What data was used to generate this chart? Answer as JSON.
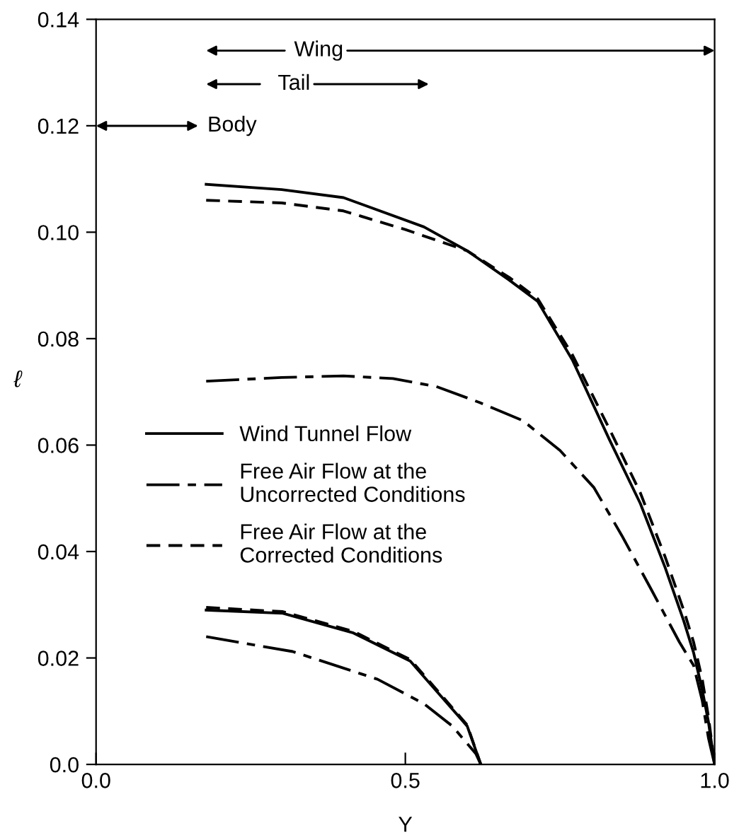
{
  "chart_data": {
    "type": "line",
    "xlabel": "Y",
    "ylabel": "ℓ",
    "xlim": [
      0,
      1.0
    ],
    "ylim": [
      0,
      0.14
    ],
    "xticks": [
      {
        "value": 0,
        "label": "0.0"
      },
      0.5,
      {
        "value": 1.0,
        "label": "1.0"
      }
    ],
    "yticks": [
      {
        "value": 0,
        "label": "0.0"
      },
      0.02,
      0.04,
      0.06,
      0.08,
      {
        "value": 0.1,
        "label": "0.10"
      },
      0.12,
      0.14
    ],
    "grid": false,
    "legend": "left",
    "marker": "none",
    "series": [
      {
        "name": "Wind Tunnel Flow",
        "color": "#000000",
        "line_style": "solid",
        "x": [
          0.178,
          0.3,
          0.4,
          0.53,
          0.6,
          0.668,
          0.714,
          0.77,
          0.83,
          0.88,
          0.92,
          0.95,
          0.966,
          0.98,
          0.99,
          1.0
        ],
        "values": [
          0.109,
          0.108,
          0.1065,
          0.101,
          0.0965,
          0.091,
          0.087,
          0.076,
          0.061,
          0.049,
          0.037,
          0.027,
          0.021,
          0.014,
          0.008,
          0.0
        ]
      },
      {
        "name": "Free Air Flow at the\nUncorrected Conditions",
        "color": "#000000",
        "line_style": "dashdot",
        "x": [
          0.178,
          0.3,
          0.4,
          0.48,
          0.55,
          0.62,
          0.69,
          0.75,
          0.805,
          0.85,
          0.897,
          0.92,
          0.943,
          0.966,
          0.98,
          0.99,
          1.0
        ],
        "values": [
          0.072,
          0.0727,
          0.073,
          0.0725,
          0.071,
          0.068,
          0.0646,
          0.059,
          0.052,
          0.043,
          0.033,
          0.028,
          0.023,
          0.0186,
          0.012,
          0.005,
          0.0
        ]
      },
      {
        "name": "Free Air Flow at the\nCorrected Conditions",
        "color": "#000000",
        "line_style": "dashed",
        "x": [
          0.178,
          0.3,
          0.4,
          0.5,
          0.6,
          0.668,
          0.714,
          0.77,
          0.83,
          0.88,
          0.92,
          0.95,
          0.966,
          0.98,
          0.99,
          1.0
        ],
        "values": [
          0.106,
          0.1055,
          0.104,
          0.1005,
          0.0965,
          0.0915,
          0.0875,
          0.077,
          0.063,
          0.051,
          0.039,
          0.029,
          0.023,
          0.016,
          0.009,
          0.0
        ]
      },
      {
        "color": "#000000",
        "line_style": "solid",
        "x": [
          0.178,
          0.302,
          0.416,
          0.508,
          0.554,
          0.6,
          0.622
        ],
        "values": [
          0.029,
          0.0284,
          0.0247,
          0.0194,
          0.0133,
          0.0072,
          0.0
        ]
      },
      {
        "color": "#000000",
        "line_style": "dashdot",
        "x": [
          0.178,
          0.318,
          0.455,
          0.53,
          0.576,
          0.614,
          0.622
        ],
        "values": [
          0.024,
          0.0212,
          0.016,
          0.0114,
          0.0072,
          0.002,
          0.0
        ]
      },
      {
        "color": "#000000",
        "line_style": "dashed",
        "x": [
          0.178,
          0.302,
          0.416,
          0.508,
          0.554,
          0.6,
          0.622
        ],
        "values": [
          0.0295,
          0.0287,
          0.025,
          0.0197,
          0.0136,
          0.0074,
          0.0
        ]
      }
    ],
    "annotations": [
      "Wing",
      "Tail",
      "Body"
    ]
  }
}
